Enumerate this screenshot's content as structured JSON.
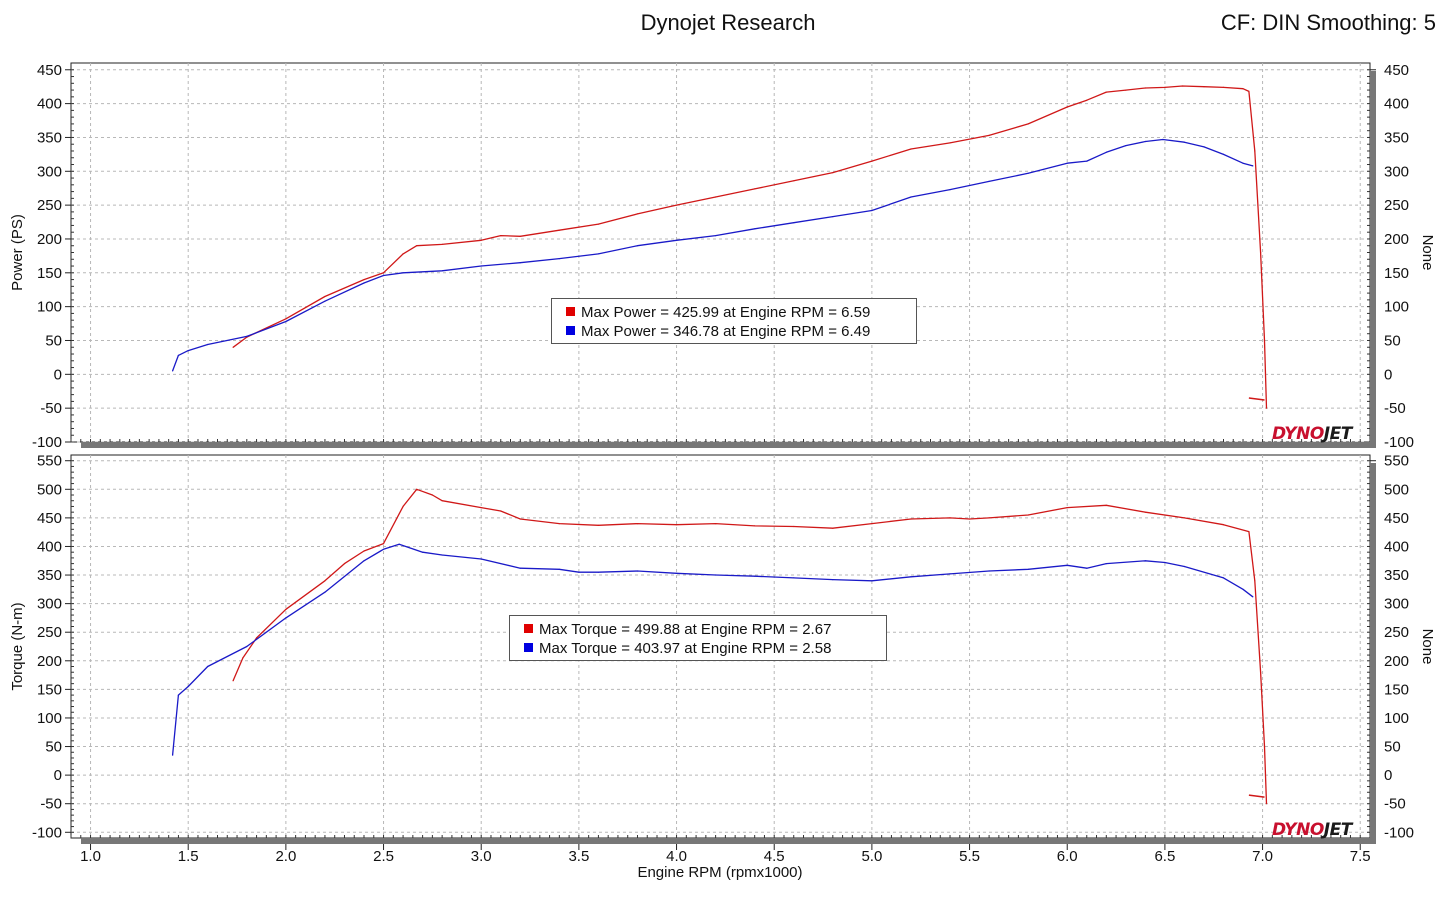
{
  "header": {
    "title": "Dynojet Research",
    "right_info": "CF: DIN Smoothing: 5"
  },
  "logo_text": "DYNOJET",
  "colors": {
    "run1": "#d01818",
    "run2": "#1a1ac8",
    "grid": "#b8b8b8"
  },
  "chart_data": [
    {
      "type": "line",
      "ylabel": "Power (PS)",
      "right_label": "None",
      "xlabel": "Engine RPM (rpmx1000)",
      "xlim": [
        0.9,
        7.55
      ],
      "ylim": [
        -100,
        460
      ],
      "yticks": [
        -100,
        -50,
        0,
        50,
        100,
        150,
        200,
        250,
        300,
        350,
        400,
        450
      ],
      "xticks": [
        1.0,
        1.5,
        2.0,
        2.5,
        3.0,
        3.5,
        4.0,
        4.5,
        5.0,
        5.5,
        6.0,
        6.5,
        7.0,
        7.5
      ],
      "grid": true,
      "legend": [
        "Max Power = 425.99 at Engine RPM = 6.59",
        "Max Power = 346.78 at Engine RPM = 6.49"
      ],
      "series": [
        {
          "color": "#d01818",
          "points": [
            [
              1.73,
              40
            ],
            [
              1.8,
              55
            ],
            [
              2.0,
              82
            ],
            [
              2.2,
              115
            ],
            [
              2.4,
              140
            ],
            [
              2.5,
              150
            ],
            [
              2.6,
              178
            ],
            [
              2.67,
              190
            ],
            [
              2.8,
              192
            ],
            [
              3.0,
              198
            ],
            [
              3.1,
              205
            ],
            [
              3.2,
              204
            ],
            [
              3.4,
              213
            ],
            [
              3.6,
              222
            ],
            [
              3.8,
              237
            ],
            [
              4.0,
              250
            ],
            [
              4.2,
              262
            ],
            [
              4.4,
              274
            ],
            [
              4.6,
              286
            ],
            [
              4.8,
              298
            ],
            [
              5.0,
              315
            ],
            [
              5.2,
              333
            ],
            [
              5.4,
              342
            ],
            [
              5.6,
              353
            ],
            [
              5.8,
              370
            ],
            [
              6.0,
              395
            ],
            [
              6.1,
              405
            ],
            [
              6.2,
              417
            ],
            [
              6.3,
              420
            ],
            [
              6.4,
              423
            ],
            [
              6.5,
              424
            ],
            [
              6.59,
              426
            ],
            [
              6.7,
              425
            ],
            [
              6.8,
              424
            ],
            [
              6.9,
              422
            ],
            [
              6.93,
              418
            ],
            [
              6.96,
              330
            ],
            [
              6.99,
              180
            ],
            [
              7.01,
              50
            ],
            [
              7.02,
              -50
            ]
          ]
        },
        {
          "color": "#1a1ac8",
          "points": [
            [
              1.42,
              5
            ],
            [
              1.45,
              28
            ],
            [
              1.5,
              35
            ],
            [
              1.6,
              44
            ],
            [
              1.8,
              56
            ],
            [
              2.0,
              78
            ],
            [
              2.2,
              108
            ],
            [
              2.4,
              135
            ],
            [
              2.5,
              146
            ],
            [
              2.6,
              150
            ],
            [
              2.8,
              153
            ],
            [
              3.0,
              160
            ],
            [
              3.2,
              165
            ],
            [
              3.4,
              171
            ],
            [
              3.6,
              178
            ],
            [
              3.8,
              190
            ],
            [
              4.0,
              198
            ],
            [
              4.2,
              205
            ],
            [
              4.4,
              215
            ],
            [
              4.6,
              224
            ],
            [
              4.8,
              233
            ],
            [
              5.0,
              242
            ],
            [
              5.2,
              262
            ],
            [
              5.4,
              273
            ],
            [
              5.6,
              285
            ],
            [
              5.8,
              297
            ],
            [
              6.0,
              312
            ],
            [
              6.1,
              315
            ],
            [
              6.2,
              328
            ],
            [
              6.3,
              338
            ],
            [
              6.4,
              344
            ],
            [
              6.49,
              347
            ],
            [
              6.6,
              343
            ],
            [
              6.7,
              336
            ],
            [
              6.8,
              325
            ],
            [
              6.9,
              312
            ],
            [
              6.95,
              308
            ]
          ]
        }
      ]
    },
    {
      "type": "line",
      "ylabel": "Torque (N-m)",
      "right_label": "None",
      "xlabel": "Engine RPM (rpmx1000)",
      "xlim": [
        0.9,
        7.55
      ],
      "ylim": [
        -110,
        560
      ],
      "yticks": [
        -100,
        -50,
        0,
        50,
        100,
        150,
        200,
        250,
        300,
        350,
        400,
        450,
        500,
        550
      ],
      "xticks": [
        1.0,
        1.5,
        2.0,
        2.5,
        3.0,
        3.5,
        4.0,
        4.5,
        5.0,
        5.5,
        6.0,
        6.5,
        7.0,
        7.5
      ],
      "grid": true,
      "legend": [
        "Max Torque = 499.88 at Engine RPM = 2.67",
        "Max Torque = 403.97 at Engine RPM = 2.58"
      ],
      "series": [
        {
          "color": "#d01818",
          "points": [
            [
              1.73,
              165
            ],
            [
              1.78,
              205
            ],
            [
              1.85,
              240
            ],
            [
              2.0,
              290
            ],
            [
              2.2,
              340
            ],
            [
              2.3,
              370
            ],
            [
              2.4,
              392
            ],
            [
              2.5,
              405
            ],
            [
              2.6,
              470
            ],
            [
              2.67,
              500
            ],
            [
              2.75,
              490
            ],
            [
              2.8,
              480
            ],
            [
              3.0,
              468
            ],
            [
              3.1,
              462
            ],
            [
              3.2,
              448
            ],
            [
              3.4,
              440
            ],
            [
              3.6,
              437
            ],
            [
              3.8,
              440
            ],
            [
              4.0,
              438
            ],
            [
              4.2,
              440
            ],
            [
              4.4,
              436
            ],
            [
              4.6,
              435
            ],
            [
              4.8,
              432
            ],
            [
              5.0,
              440
            ],
            [
              5.2,
              448
            ],
            [
              5.4,
              450
            ],
            [
              5.5,
              448
            ],
            [
              5.6,
              450
            ],
            [
              5.8,
              455
            ],
            [
              6.0,
              468
            ],
            [
              6.2,
              472
            ],
            [
              6.4,
              460
            ],
            [
              6.6,
              450
            ],
            [
              6.8,
              438
            ],
            [
              6.93,
              426
            ],
            [
              6.96,
              340
            ],
            [
              6.99,
              180
            ],
            [
              7.01,
              50
            ],
            [
              7.02,
              -50
            ]
          ]
        },
        {
          "color": "#1a1ac8",
          "points": [
            [
              1.42,
              35
            ],
            [
              1.45,
              140
            ],
            [
              1.5,
              155
            ],
            [
              1.6,
              190
            ],
            [
              1.8,
              225
            ],
            [
              2.0,
              275
            ],
            [
              2.2,
              320
            ],
            [
              2.4,
              375
            ],
            [
              2.5,
              395
            ],
            [
              2.58,
              404
            ],
            [
              2.7,
              390
            ],
            [
              2.8,
              385
            ],
            [
              3.0,
              378
            ],
            [
              3.2,
              362
            ],
            [
              3.4,
              360
            ],
            [
              3.5,
              355
            ],
            [
              3.6,
              355
            ],
            [
              3.8,
              357
            ],
            [
              4.0,
              353
            ],
            [
              4.2,
              350
            ],
            [
              4.4,
              348
            ],
            [
              4.6,
              345
            ],
            [
              4.8,
              342
            ],
            [
              5.0,
              340
            ],
            [
              5.2,
              347
            ],
            [
              5.4,
              352
            ],
            [
              5.6,
              357
            ],
            [
              5.8,
              360
            ],
            [
              6.0,
              367
            ],
            [
              6.1,
              362
            ],
            [
              6.2,
              370
            ],
            [
              6.4,
              375
            ],
            [
              6.5,
              372
            ],
            [
              6.6,
              365
            ],
            [
              6.8,
              345
            ],
            [
              6.9,
              325
            ],
            [
              6.95,
              312
            ]
          ]
        }
      ]
    }
  ]
}
